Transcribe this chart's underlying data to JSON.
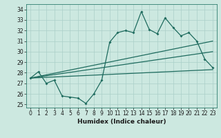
{
  "xlabel": "Humidex (Indice chaleur)",
  "ylabel": "",
  "bg_color": "#cce8e0",
  "grid_color": "#aacfc8",
  "line_color": "#1e6b5e",
  "xlim": [
    -0.5,
    23.5
  ],
  "ylim": [
    24.7,
    34.5
  ],
  "yticks": [
    25,
    26,
    27,
    28,
    29,
    30,
    31,
    32,
    33,
    34
  ],
  "xticks": [
    0,
    1,
    2,
    3,
    4,
    5,
    6,
    7,
    8,
    9,
    10,
    11,
    12,
    13,
    14,
    15,
    16,
    17,
    18,
    19,
    20,
    21,
    22,
    23
  ],
  "line1_x": [
    0,
    1,
    2,
    3,
    4,
    5,
    6,
    7,
    8,
    9,
    10,
    11,
    12,
    13,
    14,
    15,
    16,
    17,
    18,
    19,
    20,
    21,
    22,
    23
  ],
  "line1_y": [
    27.5,
    28.1,
    27.0,
    27.3,
    25.8,
    25.7,
    25.6,
    25.1,
    26.0,
    27.3,
    30.9,
    31.8,
    32.0,
    31.8,
    33.8,
    32.1,
    31.7,
    33.2,
    32.3,
    31.5,
    31.8,
    31.0,
    29.3,
    28.5
  ],
  "line2_x": [
    0,
    23
  ],
  "line2_y": [
    27.5,
    28.3
  ],
  "line3_x": [
    0,
    23
  ],
  "line3_y": [
    27.5,
    31.0
  ],
  "line4_x": [
    0,
    23
  ],
  "line4_y": [
    27.5,
    30.0
  ]
}
